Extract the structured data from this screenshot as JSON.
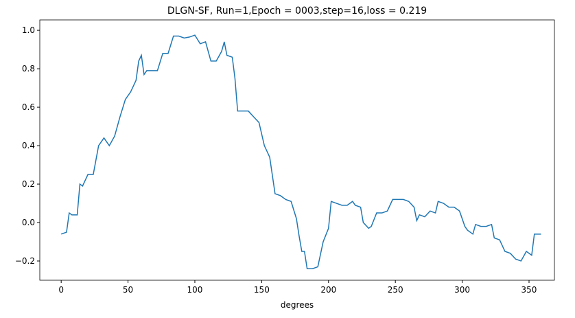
{
  "chart_data": {
    "type": "line",
    "title": "DLGN-SF, Run=1,Epoch = 0003,step=16,loss = 0.219",
    "x_label": "degrees",
    "x": [
      0,
      4,
      6,
      8,
      12,
      14,
      16,
      20,
      24,
      28,
      32,
      36,
      40,
      44,
      48,
      52,
      56,
      58,
      60,
      62,
      64,
      68,
      72,
      76,
      80,
      84,
      88,
      92,
      96,
      100,
      104,
      108,
      112,
      116,
      120,
      122,
      124,
      128,
      130,
      132,
      136,
      140,
      144,
      148,
      152,
      156,
      160,
      164,
      168,
      172,
      176,
      178,
      180,
      182,
      184,
      188,
      192,
      196,
      200,
      202,
      206,
      210,
      214,
      218,
      220,
      224,
      226,
      230,
      232,
      236,
      240,
      244,
      248,
      252,
      256,
      260,
      264,
      266,
      268,
      272,
      276,
      280,
      282,
      286,
      290,
      294,
      298,
      302,
      304,
      308,
      310,
      314,
      318,
      322,
      324,
      328,
      332,
      336,
      340,
      344,
      348,
      352,
      354,
      359
    ],
    "series": [
      {
        "name": "line",
        "color": "#1f77b4",
        "values": [
          -0.06,
          -0.05,
          0.05,
          0.04,
          0.04,
          0.2,
          0.19,
          0.25,
          0.25,
          0.4,
          0.44,
          0.4,
          0.45,
          0.55,
          0.64,
          0.68,
          0.74,
          0.84,
          0.87,
          0.77,
          0.79,
          0.79,
          0.79,
          0.88,
          0.88,
          0.97,
          0.97,
          0.96,
          0.965,
          0.975,
          0.93,
          0.94,
          0.84,
          0.84,
          0.89,
          0.94,
          0.87,
          0.86,
          0.75,
          0.58,
          0.58,
          0.58,
          0.55,
          0.52,
          0.4,
          0.34,
          0.15,
          0.14,
          0.12,
          0.11,
          0.02,
          -0.07,
          -0.15,
          -0.15,
          -0.24,
          -0.24,
          -0.23,
          -0.1,
          -0.03,
          0.11,
          0.1,
          0.09,
          0.09,
          0.11,
          0.09,
          0.08,
          0.0,
          -0.03,
          -0.02,
          0.05,
          0.05,
          0.06,
          0.12,
          0.12,
          0.12,
          0.11,
          0.08,
          0.01,
          0.04,
          0.03,
          0.06,
          0.05,
          0.11,
          0.1,
          0.08,
          0.08,
          0.06,
          -0.02,
          -0.04,
          -0.06,
          -0.01,
          -0.02,
          -0.02,
          -0.01,
          -0.08,
          -0.09,
          -0.15,
          -0.16,
          -0.19,
          -0.2,
          -0.15,
          -0.17,
          -0.06,
          -0.06
        ]
      }
    ],
    "xlim": [
      -16,
      369
    ],
    "ylim": [
      -0.3,
      1.054
    ],
    "xticks": [
      0,
      50,
      100,
      150,
      200,
      250,
      300,
      350
    ],
    "yticks": [
      {
        "value": -0.2,
        "label": "−0.2"
      },
      {
        "value": 0,
        "label": "0.0"
      },
      {
        "value": 0.2,
        "label": "0.2"
      },
      {
        "value": 0.4,
        "label": "0.4"
      },
      {
        "value": 0.6,
        "label": "0.6"
      },
      {
        "value": 0.8,
        "label": "0.8"
      },
      {
        "value": 1.0,
        "label": "1.0"
      }
    ]
  }
}
